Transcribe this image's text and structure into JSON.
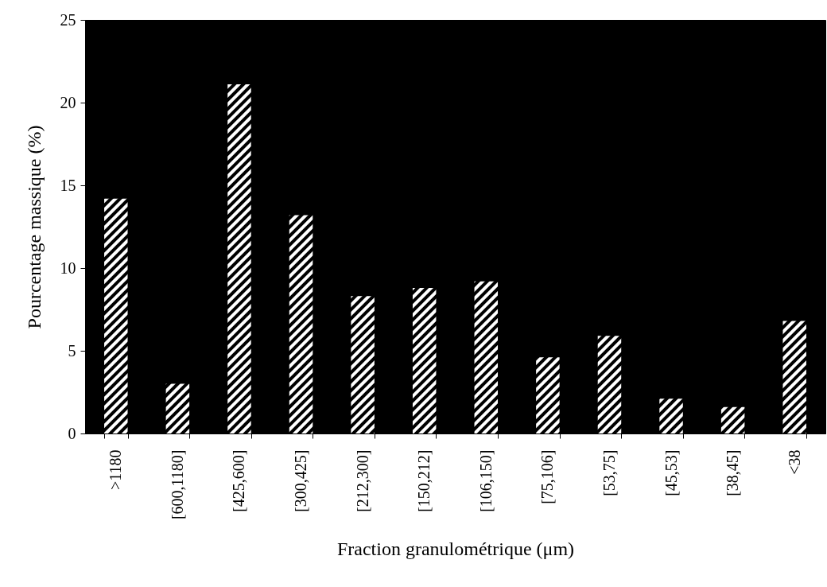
{
  "chart_data": {
    "type": "bar",
    "xlabel": "Fraction granulométrique (μm)",
    "ylabel": "Pourcentage massique (%)",
    "categories": [
      ">1180",
      "[600,1180]",
      "[425,600]",
      "[300,425]",
      "[212,300]",
      "[150,212]",
      "[106,150]",
      "[75,106]",
      "[53,75]",
      "[45,53]",
      "[38,45]",
      "<38"
    ],
    "values": [
      14.2,
      3.0,
      21.1,
      13.2,
      8.3,
      8.8,
      9.2,
      4.6,
      5.9,
      2.1,
      1.6,
      6.8
    ],
    "color": "#ffffff",
    "ylim": [
      0,
      25
    ],
    "yticks": [
      0,
      5,
      10,
      15,
      20,
      25
    ],
    "grid": false
  }
}
